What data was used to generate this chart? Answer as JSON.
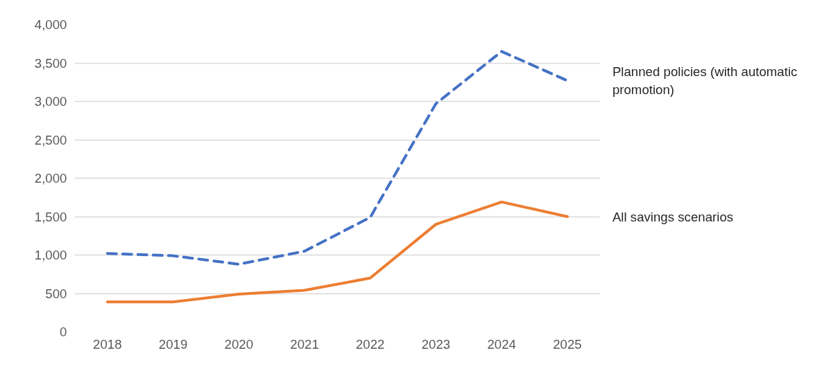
{
  "chart_data": {
    "type": "line",
    "categories": [
      "2018",
      "2019",
      "2020",
      "2021",
      "2022",
      "2023",
      "2024",
      "2025"
    ],
    "series": [
      {
        "name": "Planned policies (with automatic promotion)",
        "color": "#4472c4",
        "line_style": "dashed",
        "values": [
          1020,
          990,
          880,
          1050,
          1490,
          2970,
          3650,
          3270
        ]
      },
      {
        "name": "All savings scenarios",
        "color": "#ed7d31",
        "line_style": "solid",
        "values": [
          390,
          390,
          490,
          540,
          700,
          1400,
          1690,
          1500
        ]
      }
    ],
    "ylim": [
      0,
      4000
    ],
    "yticks": [
      0,
      {
        "value": 500,
        "label": "500"
      },
      {
        "value": 1000,
        "label": "1,000"
      },
      {
        "value": 1500,
        "label": "1,500"
      },
      {
        "value": 2000,
        "label": "2,000"
      },
      {
        "value": 2500,
        "label": "2,500"
      },
      {
        "value": 3000,
        "label": "3,000"
      },
      {
        "value": 3500,
        "label": "3,500"
      },
      {
        "value": 4000,
        "label": "4,000"
      }
    ],
    "grid": "y",
    "marker": "none"
  }
}
